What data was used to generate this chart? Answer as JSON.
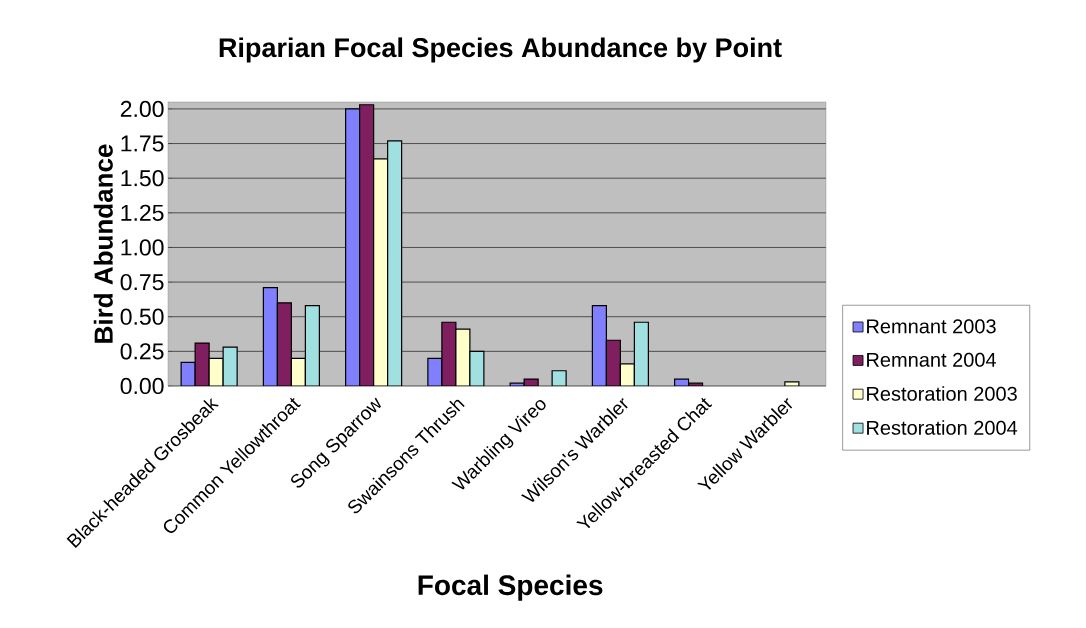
{
  "chart_data": {
    "type": "bar",
    "title": "Riparian Focal Species Abundance by Point",
    "xlabel": "Focal Species",
    "ylabel": "Bird Abundance",
    "categories": [
      "Black-headed Grosbeak",
      "Common Yellowthroat",
      "Song Sparrow",
      "Swainsons Thrush",
      "Warbling Vireo",
      "Wilson's Warbler",
      "Yellow-breasted Chat",
      "Yellow Warbler"
    ],
    "series": [
      {
        "name": "Remnant 2003",
        "color": "#8080ff",
        "values": [
          0.17,
          0.71,
          2.0,
          0.2,
          0.02,
          0.58,
          0.05,
          null
        ]
      },
      {
        "name": "Remnant 2004",
        "color": "#7f1f5f",
        "values": [
          0.31,
          0.6,
          2.03,
          0.46,
          0.05,
          0.33,
          0.02,
          null
        ]
      },
      {
        "name": "Restoration 2003",
        "color": "#ffffcc",
        "values": [
          0.2,
          0.2,
          1.64,
          0.41,
          null,
          0.16,
          null,
          0.03
        ]
      },
      {
        "name": "Restoration 2004",
        "color": "#a0e0e0",
        "values": [
          0.28,
          0.58,
          1.77,
          0.25,
          0.11,
          0.46,
          null,
          null
        ]
      }
    ],
    "ylim": [
      0,
      2.05
    ],
    "yticks": [
      {
        "value": 0,
        "label": "0.00"
      },
      {
        "value": 0.25,
        "label": "0.25"
      },
      {
        "value": 0.5,
        "label": "0.50"
      },
      {
        "value": 0.75,
        "label": "0.75"
      },
      {
        "value": 1.0,
        "label": "1.00"
      },
      {
        "value": 1.25,
        "label": "1.25"
      },
      {
        "value": 1.5,
        "label": "1.50"
      },
      {
        "value": 1.75,
        "label": "1.75"
      },
      {
        "value": 2.0,
        "label": "2.00"
      }
    ],
    "grid": "y",
    "legend": "right"
  }
}
